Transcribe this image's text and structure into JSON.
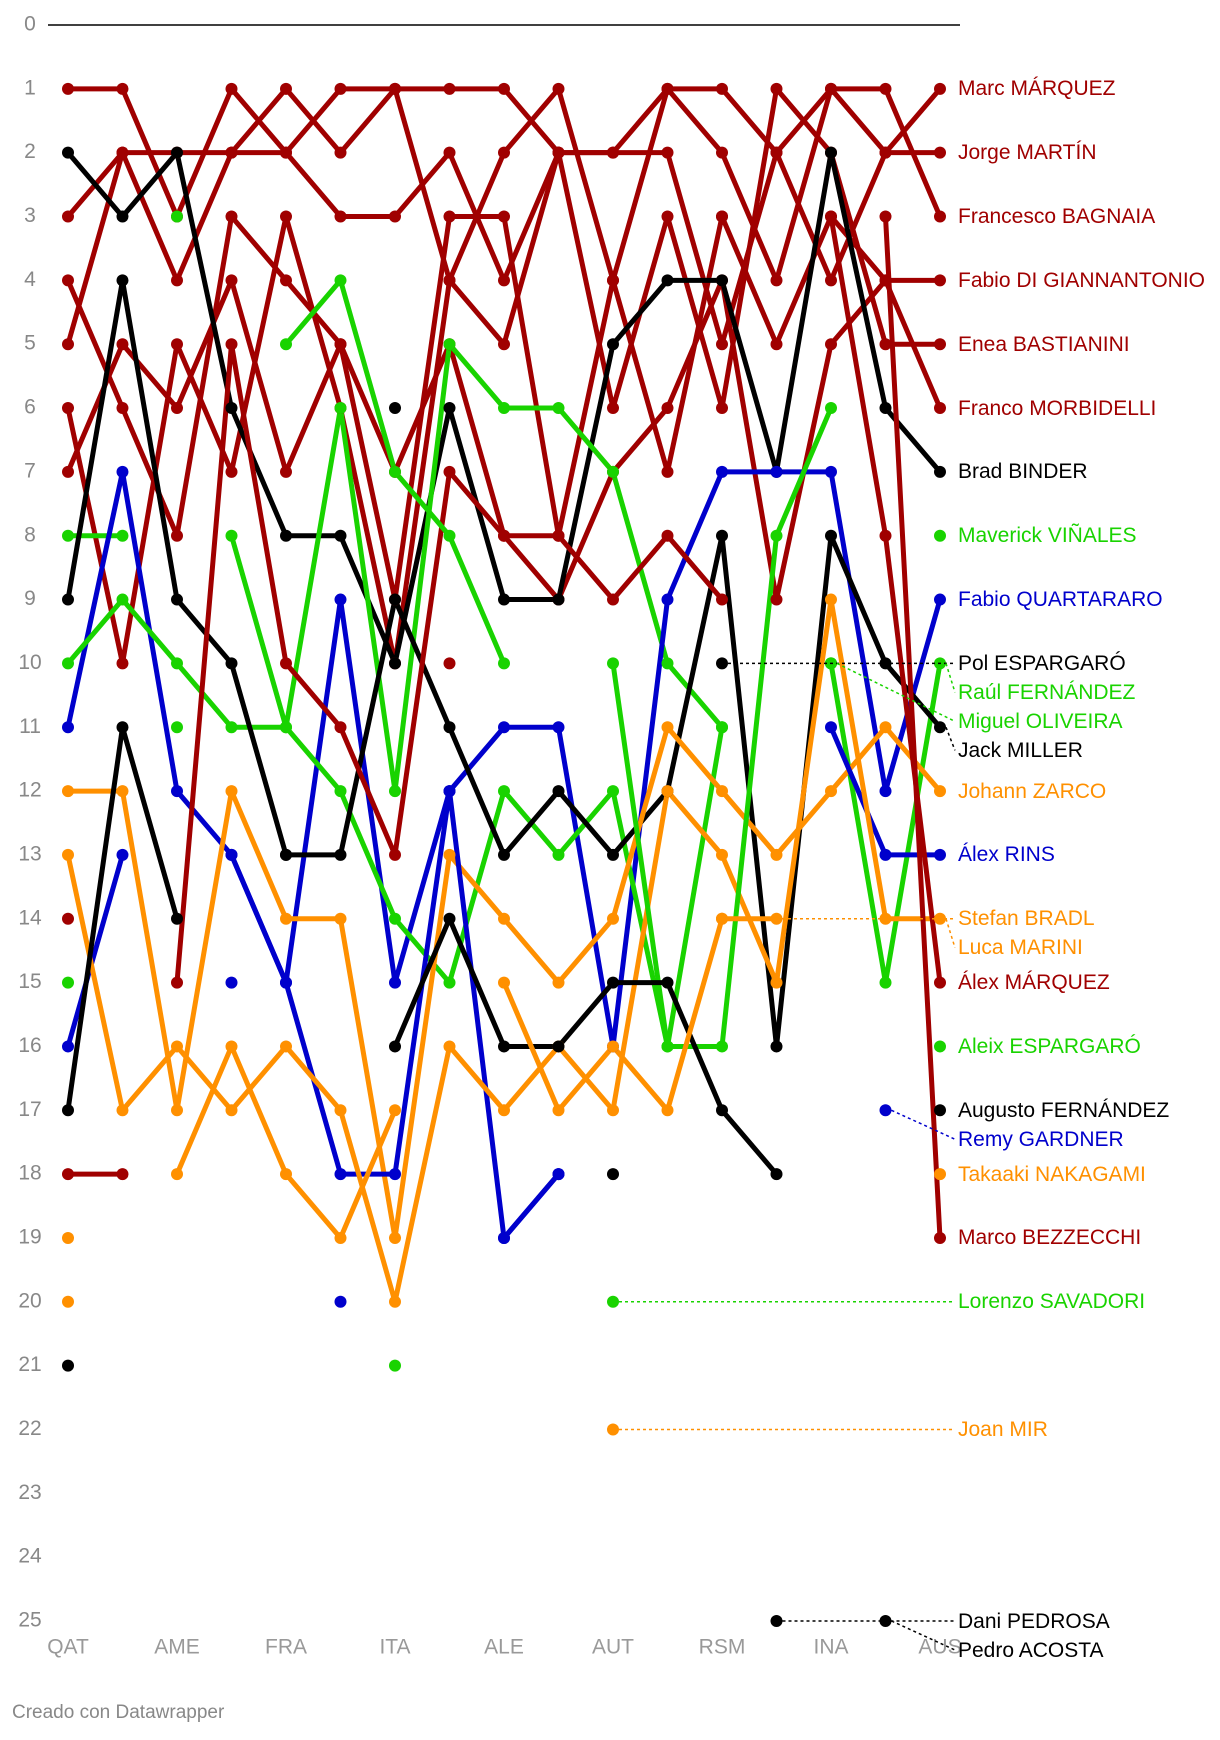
{
  "chart_data": {
    "type": "line",
    "categories": [
      "QAT",
      null,
      "AME",
      null,
      "FRA",
      null,
      "ITA",
      null,
      "ALE",
      null,
      "AUT",
      null,
      "RSM",
      null,
      "INA",
      null,
      "AUS"
    ],
    "ylim": [
      0,
      25
    ],
    "yticks": [
      0,
      1,
      2,
      3,
      4,
      5,
      6,
      7,
      8,
      9,
      10,
      11,
      12,
      13,
      14,
      15,
      16,
      17,
      18,
      19,
      20,
      21,
      22,
      23,
      24,
      25
    ],
    "inverted": true,
    "grid": false,
    "series": [
      {
        "name": "Marc MÁRQUEZ",
        "color": "#a00000",
        "values": [
          1,
          1,
          3,
          1,
          2,
          1,
          1,
          1,
          1,
          2,
          2,
          1,
          1,
          2,
          1,
          2,
          1
        ]
      },
      {
        "name": "Jorge MARTÍN",
        "color": "#a00000",
        "values": [
          3,
          2,
          2,
          2,
          2,
          3,
          3,
          2,
          4,
          2,
          2,
          2,
          5,
          2,
          4,
          2,
          2
        ]
      },
      {
        "name": "Francesco BAGNAIA",
        "color": "#a00000",
        "values": [
          5,
          2,
          4,
          2,
          1,
          2,
          1,
          4,
          2,
          1,
          4,
          1,
          2,
          4,
          1,
          1,
          3
        ]
      },
      {
        "name": "Fabio DI GIANNANTONIO",
        "color": "#a00000",
        "values": [
          4,
          6,
          8,
          3,
          4,
          5,
          9,
          3,
          3,
          8,
          4,
          7,
          3,
          5,
          3,
          4,
          4
        ]
      },
      {
        "name": "Enea BASTIANINI",
        "color": "#a00000",
        "values": [
          6,
          10,
          5,
          7,
          3,
          6,
          10,
          4,
          5,
          2,
          6,
          3,
          6,
          1,
          2,
          5,
          5
        ]
      },
      {
        "name": "Franco MORBIDELLI",
        "color": "#a00000",
        "values": [
          7,
          5,
          6,
          4,
          7,
          5,
          7,
          5,
          8,
          9,
          7,
          6,
          4,
          9,
          5,
          4,
          6
        ]
      },
      {
        "name": "Brad BINDER",
        "color": "#000000",
        "values": [
          2,
          3,
          2,
          6,
          8,
          8,
          10,
          6,
          9,
          9,
          5,
          4,
          4,
          7,
          2,
          6,
          7
        ]
      },
      {
        "name": "Maverick VIÑALES",
        "color": "#19d300",
        "values": [
          8,
          8,
          null,
          8,
          11,
          6,
          12,
          5,
          6,
          6,
          7,
          10,
          11,
          null,
          10,
          null,
          8
        ]
      },
      {
        "name": "Fabio QUARTARARO",
        "color": "#0000cc",
        "values": [
          11,
          7,
          12,
          13,
          15,
          9,
          15,
          12,
          11,
          11,
          16,
          9,
          7,
          7,
          7,
          12,
          9
        ]
      },
      {
        "name": "Pol ESPARGARÓ",
        "color": "#000000",
        "values": [
          null,
          null,
          null,
          null,
          null,
          null,
          null,
          null,
          null,
          null,
          null,
          null,
          10,
          null,
          null,
          null,
          null
        ]
      },
      {
        "name": "Raúl FERNÁNDEZ",
        "color": "#19d300",
        "values": [
          10,
          9,
          10,
          11,
          11,
          12,
          14,
          15,
          12,
          13,
          12,
          16,
          11,
          null,
          10,
          15,
          10
        ]
      },
      {
        "name": "Miguel OLIVEIRA",
        "color": "#19d300",
        "values": [
          15,
          null,
          11,
          null,
          null,
          null,
          null,
          null,
          null,
          null,
          null,
          null,
          null,
          null,
          10,
          null,
          null
        ]
      },
      {
        "name": "Jack MILLER",
        "color": "#000000",
        "values": [
          9,
          4,
          9,
          10,
          13,
          13,
          9,
          11,
          13,
          12,
          13,
          12,
          8,
          16,
          8,
          10,
          11
        ]
      },
      {
        "name": "Johann ZARCO",
        "color": "#ff9000",
        "values": [
          12,
          12,
          17,
          12,
          14,
          14,
          19,
          13,
          14,
          15,
          14,
          11,
          12,
          13,
          12,
          11,
          12
        ]
      },
      {
        "name": "Álex RINS",
        "color": "#0000cc",
        "values": [
          16,
          13,
          null,
          13,
          15,
          18,
          18,
          12,
          19,
          18,
          null,
          null,
          null,
          null,
          11,
          13,
          13
        ]
      },
      {
        "name": "Stefan BRADL",
        "color": "#ff9000",
        "values": [
          null,
          null,
          null,
          null,
          null,
          null,
          null,
          null,
          null,
          null,
          null,
          null,
          14,
          null,
          null,
          null,
          null
        ]
      },
      {
        "name": "Luca MARINI",
        "color": "#ff9000",
        "values": [
          13,
          17,
          16,
          17,
          16,
          17,
          20,
          16,
          17,
          16,
          17,
          12,
          13,
          15,
          9,
          14,
          14
        ]
      },
      {
        "name": "Álex MÁRQUEZ",
        "color": "#a00000",
        "values": [
          14,
          null,
          15,
          5,
          10,
          11,
          13,
          7,
          8,
          8,
          9,
          8,
          9,
          null,
          3,
          8,
          15
        ]
      },
      {
        "name": "Aleix ESPARGARÓ",
        "color": "#19d300",
        "values": [
          null,
          null,
          3,
          null,
          5,
          4,
          7,
          8,
          10,
          null,
          10,
          16,
          16,
          8,
          6,
          null,
          16
        ]
      },
      {
        "name": "Augusto FERNÁNDEZ",
        "color": "#000000",
        "values": [
          17,
          11,
          14,
          null,
          13,
          null,
          16,
          14,
          16,
          16,
          15,
          15,
          17,
          18,
          null,
          null,
          17
        ]
      },
      {
        "name": "Remy GARDNER",
        "color": "#0000cc",
        "values": [
          null,
          null,
          null,
          15,
          null,
          20,
          null,
          null,
          19,
          18,
          null,
          null,
          null,
          null,
          null,
          17,
          null
        ]
      },
      {
        "name": "Takaaki NAKAGAMI",
        "color": "#ff9000",
        "values": [
          19,
          null,
          18,
          16,
          18,
          19,
          17,
          null,
          15,
          17,
          16,
          17,
          14,
          14,
          null,
          null,
          18
        ]
      },
      {
        "name": "Marco BEZZECCHI",
        "color": "#a00000",
        "values": [
          18,
          18,
          null,
          null,
          null,
          null,
          null,
          10,
          null,
          null,
          null,
          null,
          3,
          null,
          null,
          3,
          19
        ]
      },
      {
        "name": "Dani PEDROSA",
        "color": "#000000",
        "values": [
          null,
          null,
          null,
          null,
          null,
          null,
          null,
          null,
          null,
          null,
          null,
          null,
          null,
          25,
          null,
          null,
          null
        ]
      },
      {
        "name": "Pedro ACOSTA",
        "color": "#000000",
        "values": [
          21,
          null,
          null,
          null,
          null,
          null,
          6,
          null,
          null,
          null,
          18,
          null,
          null,
          null,
          null,
          25,
          null
        ]
      },
      {
        "name": "Joan MIR",
        "color": "#ff9000",
        "values": [
          20,
          null,
          null,
          null,
          null,
          null,
          null,
          null,
          null,
          null,
          22,
          null,
          null,
          null,
          null,
          null,
          null
        ]
      },
      {
        "name": "Lorenzo SAVADORI",
        "color": "#19d300",
        "values": [
          null,
          null,
          null,
          null,
          null,
          null,
          21,
          null,
          null,
          null,
          20,
          null,
          null,
          null,
          null,
          null,
          null
        ]
      }
    ],
    "footer": "Creado con Datawrapper"
  }
}
